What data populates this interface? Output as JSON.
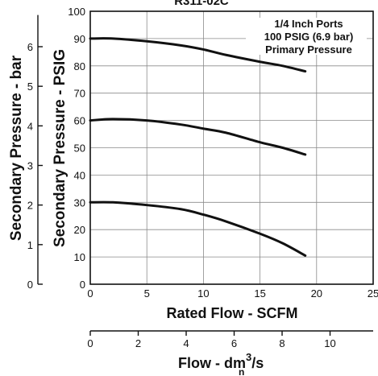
{
  "chart_data": {
    "type": "line",
    "title_partial": "R311-02C",
    "xlabel": "Rated Flow - SCFM",
    "ylabel": "Secondary Pressure - PSIG",
    "xlim": [
      0,
      25
    ],
    "ylim": [
      0,
      100
    ],
    "x_ticks": [
      0,
      5,
      10,
      15,
      20,
      25
    ],
    "y_ticks": [
      0,
      10,
      20,
      30,
      40,
      50,
      60,
      70,
      80,
      90,
      100
    ],
    "grid": true,
    "series": [
      {
        "x": [
          0,
          2,
          5,
          8,
          10,
          12,
          15,
          17,
          19
        ],
        "y": [
          90,
          90,
          89,
          87.5,
          86,
          84,
          81.5,
          80,
          78
        ]
      },
      {
        "x": [
          0,
          2,
          5,
          8,
          10,
          12,
          15,
          17,
          19
        ],
        "y": [
          60,
          60.5,
          60,
          58.5,
          57,
          55.5,
          52,
          50,
          47.5
        ]
      },
      {
        "x": [
          0,
          2,
          5,
          8,
          10,
          12,
          15,
          17,
          19
        ],
        "y": [
          30,
          30,
          29,
          27.5,
          25.5,
          23,
          18.5,
          15,
          10.5
        ]
      }
    ],
    "annotation": [
      "1/4 Inch Ports",
      "100 PSIG (6.9 bar)",
      "Primary Pressure"
    ],
    "secondary_y": {
      "label": "Secondary Pressure - bar",
      "ticks": [
        0,
        1,
        2,
        3,
        4,
        5,
        6
      ]
    },
    "secondary_x": {
      "label_main": "Flow - dm",
      "label_sup": "3",
      "label_sub": "n",
      "label_end": "/s",
      "ticks": [
        0,
        2,
        4,
        6,
        8,
        10
      ]
    }
  }
}
